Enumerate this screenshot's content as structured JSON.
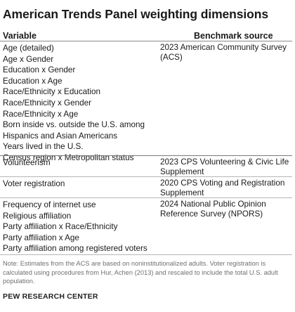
{
  "title": "American Trends Panel weighting dimensions",
  "headers": {
    "variable": "Variable",
    "benchmark": "Benchmark source"
  },
  "groups": [
    {
      "variables": [
        "Age (detailed)",
        "Age x Gender",
        "Education x Gender",
        "Education x Age",
        "Race/Ethnicity x Education",
        "Race/Ethnicity x Gender",
        "Race/Ethnicity x Age",
        "Born inside vs. outside the U.S. among",
        "Hispanics and Asian Americans",
        "Years lived in the U.S.",
        "Census region x Metropolitan status"
      ],
      "source": "2023 American Community Survey (ACS)"
    },
    {
      "variables": [
        "Volunteerism"
      ],
      "source": "2023 CPS Volunteering & Civic Life Supplement"
    },
    {
      "variables": [
        "Voter registration"
      ],
      "source": "2020 CPS Voting and Registration Supplement"
    },
    {
      "variables": [
        "Frequency of internet use",
        "Religious affiliation",
        "Party affiliation x Race/Ethnicity",
        "Party affiliation x Age",
        "Party affiliation among registered voters"
      ],
      "source": "2024 National Public Opinion Reference Survey (NPORS)"
    }
  ],
  "note": "Note: Estimates from the ACS are based on noninstitutionalized adults. Voter registration is calculated using procedures from Hur, Achen (2013) and rescaled to include the total U.S. adult population.",
  "footer": "PEW RESEARCH CENTER"
}
